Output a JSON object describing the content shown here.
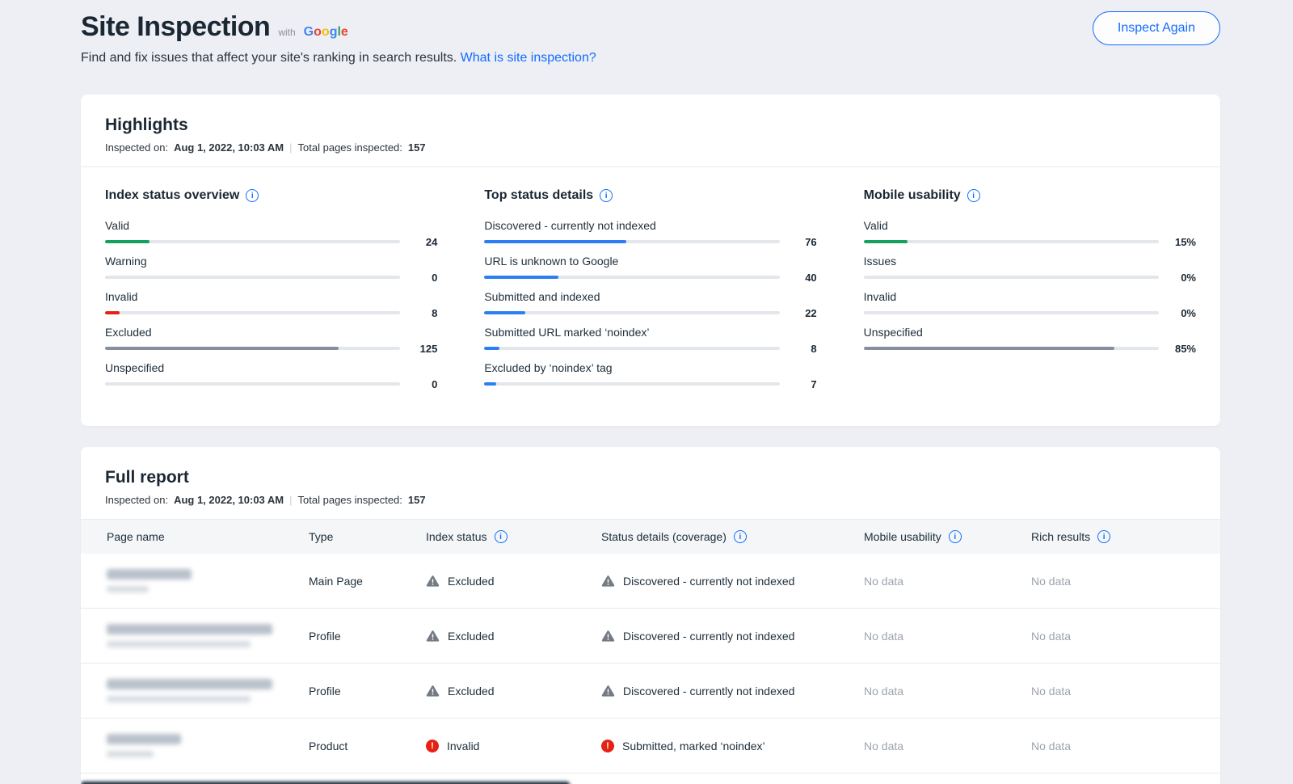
{
  "colors": {
    "accent": "#116dff",
    "bar_blue": "#2b7ff2",
    "bar_green": "#16a05d",
    "bar_red": "#e62214",
    "bar_gray": "#868fa0",
    "track": "#e3e6ea"
  },
  "header": {
    "title": "Site Inspection",
    "with_label": "with",
    "google_letters": [
      {
        "ch": "G",
        "color": "#4285F4"
      },
      {
        "ch": "o",
        "color": "#EA4335"
      },
      {
        "ch": "o",
        "color": "#FBBC05"
      },
      {
        "ch": "g",
        "color": "#4285F4"
      },
      {
        "ch": "l",
        "color": "#34A853"
      },
      {
        "ch": "e",
        "color": "#EA4335"
      }
    ],
    "subtitle": "Find and fix issues that affect your site's ranking in search results.",
    "subtitle_link": "What is site inspection?",
    "inspect_again": "Inspect Again"
  },
  "highlights": {
    "title": "Highlights",
    "inspected_on_label": "Inspected on:",
    "inspected_on_value": "Aug 1, 2022, 10:03 AM",
    "separator": "|",
    "total_label": "Total pages inspected:",
    "total_value": "157",
    "columns": [
      {
        "title": "Index status overview",
        "items": [
          {
            "label": "Valid",
            "value": "24",
            "pct": 15,
            "color": "green"
          },
          {
            "label": "Warning",
            "value": "0",
            "pct": 0,
            "color": "green"
          },
          {
            "label": "Invalid",
            "value": "8",
            "pct": 5,
            "color": "red"
          },
          {
            "label": "Excluded",
            "value": "125",
            "pct": 79,
            "color": "gray"
          },
          {
            "label": "Unspecified",
            "value": "0",
            "pct": 0,
            "color": "gray"
          }
        ]
      },
      {
        "title": "Top status details",
        "items": [
          {
            "label": "Discovered - currently not indexed",
            "value": "76",
            "pct": 48,
            "color": "blue"
          },
          {
            "label": "URL is unknown to Google",
            "value": "40",
            "pct": 25,
            "color": "blue"
          },
          {
            "label": "Submitted and indexed",
            "value": "22",
            "pct": 14,
            "color": "blue"
          },
          {
            "label": "Submitted URL marked ‘noindex’",
            "value": "8",
            "pct": 5,
            "color": "blue"
          },
          {
            "label": "Excluded by ‘noindex’ tag",
            "value": "7",
            "pct": 4,
            "color": "blue"
          }
        ]
      },
      {
        "title": "Mobile usability",
        "items": [
          {
            "label": "Valid",
            "value": "15%",
            "pct": 15,
            "color": "green"
          },
          {
            "label": "Issues",
            "value": "0%",
            "pct": 0,
            "color": "gray"
          },
          {
            "label": "Invalid",
            "value": "0%",
            "pct": 0,
            "color": "red"
          },
          {
            "label": "Unspecified",
            "value": "85%",
            "pct": 85,
            "color": "gray"
          }
        ]
      }
    ]
  },
  "report": {
    "title": "Full report",
    "inspected_on_label": "Inspected on:",
    "inspected_on_value": "Aug 1, 2022, 10:03 AM",
    "separator": "|",
    "total_label": "Total pages inspected:",
    "total_value": "157",
    "columns": [
      "Page name",
      "Type",
      "Index status",
      "Status details (coverage)",
      "Mobile usability",
      "Rich results"
    ],
    "rows": [
      {
        "page_name_redacted": true,
        "type": "Main Page",
        "index_status": "Excluded",
        "index_status_icon": "warning-icon",
        "status_details": "Discovered - currently not indexed",
        "status_details_icon": "warning-icon",
        "mobile_usability": "No data",
        "rich_results": "No data"
      },
      {
        "page_name_redacted": true,
        "type": "Profile",
        "index_status": "Excluded",
        "index_status_icon": "warning-icon",
        "status_details": "Discovered - currently not indexed",
        "status_details_icon": "warning-icon",
        "mobile_usability": "No data",
        "rich_results": "No data"
      },
      {
        "page_name_redacted": true,
        "type": "Profile",
        "index_status": "Excluded",
        "index_status_icon": "warning-icon",
        "status_details": "Discovered - currently not indexed",
        "status_details_icon": "warning-icon",
        "mobile_usability": "No data",
        "rich_results": "No data"
      },
      {
        "page_name_redacted": true,
        "type": "Product",
        "index_status": "Invalid",
        "index_status_icon": "error-icon",
        "status_details": "Submitted, marked ‘noindex’",
        "status_details_icon": "error-icon",
        "mobile_usability": "No data",
        "rich_results": "No data"
      }
    ]
  }
}
